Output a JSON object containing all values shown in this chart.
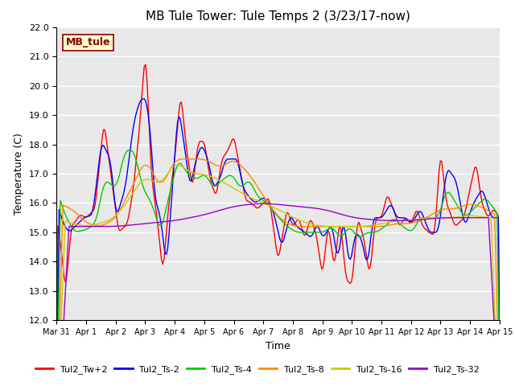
{
  "title": "MB Tule Tower: Tule Temps 2 (3/23/17-now)",
  "xlabel": "Time",
  "ylabel": "Temperature (C)",
  "ylim": [
    12.0,
    22.0
  ],
  "yticks": [
    12.0,
    13.0,
    14.0,
    15.0,
    16.0,
    17.0,
    18.0,
    19.0,
    20.0,
    21.0,
    22.0
  ],
  "bg_color": "#e8e8e8",
  "grid_color": "white",
  "annotation_text": "MB_tule",
  "annotation_color": "#8b0000",
  "annotation_bg": "#ffffcc",
  "annotation_border": "#8b0000",
  "series": [
    {
      "label": "Tul2_Tw+2",
      "color": "#ff0000"
    },
    {
      "label": "Tul2_Ts-2",
      "color": "#0000ff"
    },
    {
      "label": "Tul2_Ts-4",
      "color": "#00cc00"
    },
    {
      "label": "Tul2_Ts-8",
      "color": "#ff8800"
    },
    {
      "label": "Tul2_Ts-16",
      "color": "#cccc00"
    },
    {
      "label": "Tul2_Ts-32",
      "color": "#9900cc"
    }
  ],
  "tick_labels": [
    "Mar 31",
    "Apr 1",
    "Apr 2",
    "Apr 3",
    "Apr 4",
    "Apr 5",
    "Apr 6",
    "Apr 7",
    "Apr 8",
    "Apr 9",
    "Apr 10",
    "Apr 11",
    "Apr 12",
    "Apr 13",
    "Apr 14",
    "Apr 15"
  ],
  "n_points": 360,
  "figsize": [
    6.4,
    4.8
  ],
  "dpi": 100
}
